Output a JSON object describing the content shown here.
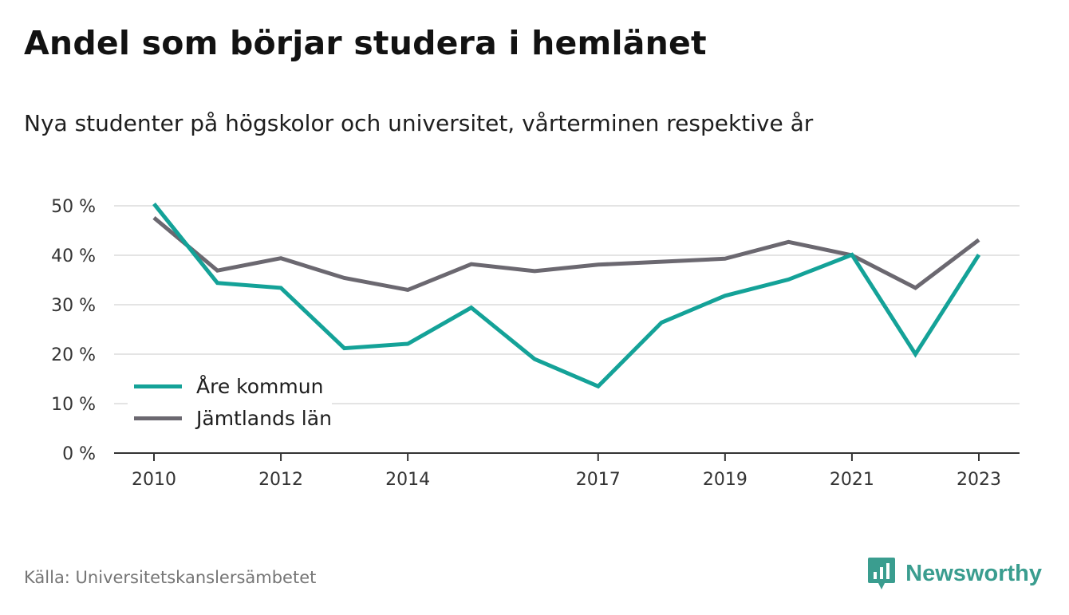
{
  "header": {
    "title": "Andel som börjar studera i hemlänet",
    "subtitle": "Nya studenter på högskolor och universitet, vårterminen respektive år"
  },
  "footer": {
    "source": "Källa: Universitetskanslersämbetet",
    "brand": "Newsworthy"
  },
  "colors": {
    "are": "#14a298",
    "jamtland": "#6b6870",
    "brand": "#3a9d8f"
  },
  "chart_data": {
    "type": "line",
    "title": "Andel som börjar studera i hemlänet",
    "subtitle": "Nya studenter på högskolor och universitet, vårterminen respektive år",
    "x": [
      2010,
      2011,
      2012,
      2013,
      2014,
      2015,
      2016,
      2017,
      2018,
      2019,
      2020,
      2021,
      2022,
      2023
    ],
    "x_tick_labels": [
      "2010",
      "2012",
      "2014",
      "2017",
      "2019",
      "2021",
      "2023"
    ],
    "x_tick_values": [
      2010,
      2012,
      2014,
      2017,
      2019,
      2021,
      2023
    ],
    "y_ticks": [
      0,
      10,
      20,
      30,
      40,
      50
    ],
    "y_tick_labels": [
      "0 %",
      "10 %",
      "20 %",
      "30 %",
      "40 %",
      "50 %"
    ],
    "ylim": [
      0,
      50
    ],
    "grid": true,
    "legend_position": "bottom-left",
    "series": [
      {
        "name": "Åre kommun",
        "color": "#14a298",
        "values": [
          50.4,
          34.4,
          33.4,
          21.2,
          22.1,
          29.4,
          19.0,
          13.5,
          26.4,
          31.8,
          35.1,
          40.1,
          20.0,
          40.1
        ]
      },
      {
        "name": "Jämtlands län",
        "color": "#6b6870",
        "values": [
          47.6,
          36.9,
          39.4,
          35.4,
          33.0,
          38.2,
          36.8,
          38.1,
          38.7,
          39.3,
          42.7,
          40.0,
          33.4,
          43.1
        ]
      }
    ]
  }
}
